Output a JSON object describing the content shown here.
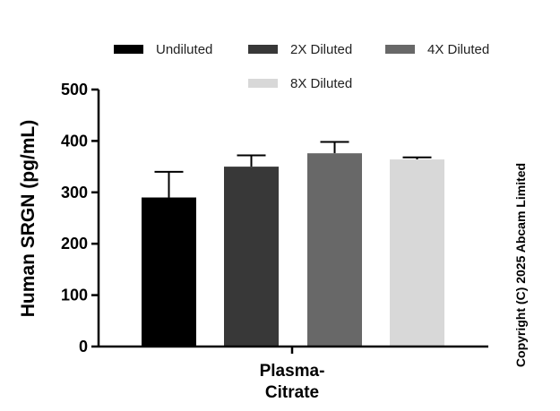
{
  "chart_data": {
    "type": "bar",
    "title": "",
    "ylabel": "Human SRGN (pg/mL)",
    "xlabel": "",
    "categories": [
      "Plasma-Citrate"
    ],
    "category_lines": [
      "Plasma-",
      "Citrate"
    ],
    "ylim": [
      0,
      500
    ],
    "yticks": [
      0,
      100,
      200,
      300,
      400,
      500
    ],
    "legend_position": "top",
    "series": [
      {
        "name": "Undiluted",
        "values": [
          290
        ],
        "error": [
          50
        ],
        "color": "#000000"
      },
      {
        "name": "2X Diluted",
        "values": [
          350
        ],
        "error": [
          22
        ],
        "color": "#383838"
      },
      {
        "name": "4X Diluted",
        "values": [
          376
        ],
        "error": [
          22
        ],
        "color": "#686868"
      },
      {
        "name": "8X Diluted",
        "values": [
          364
        ],
        "error": [
          4
        ],
        "color": "#d8d8d8"
      }
    ]
  },
  "copyright": "Copyright (C) 2025 Abcam Limited"
}
